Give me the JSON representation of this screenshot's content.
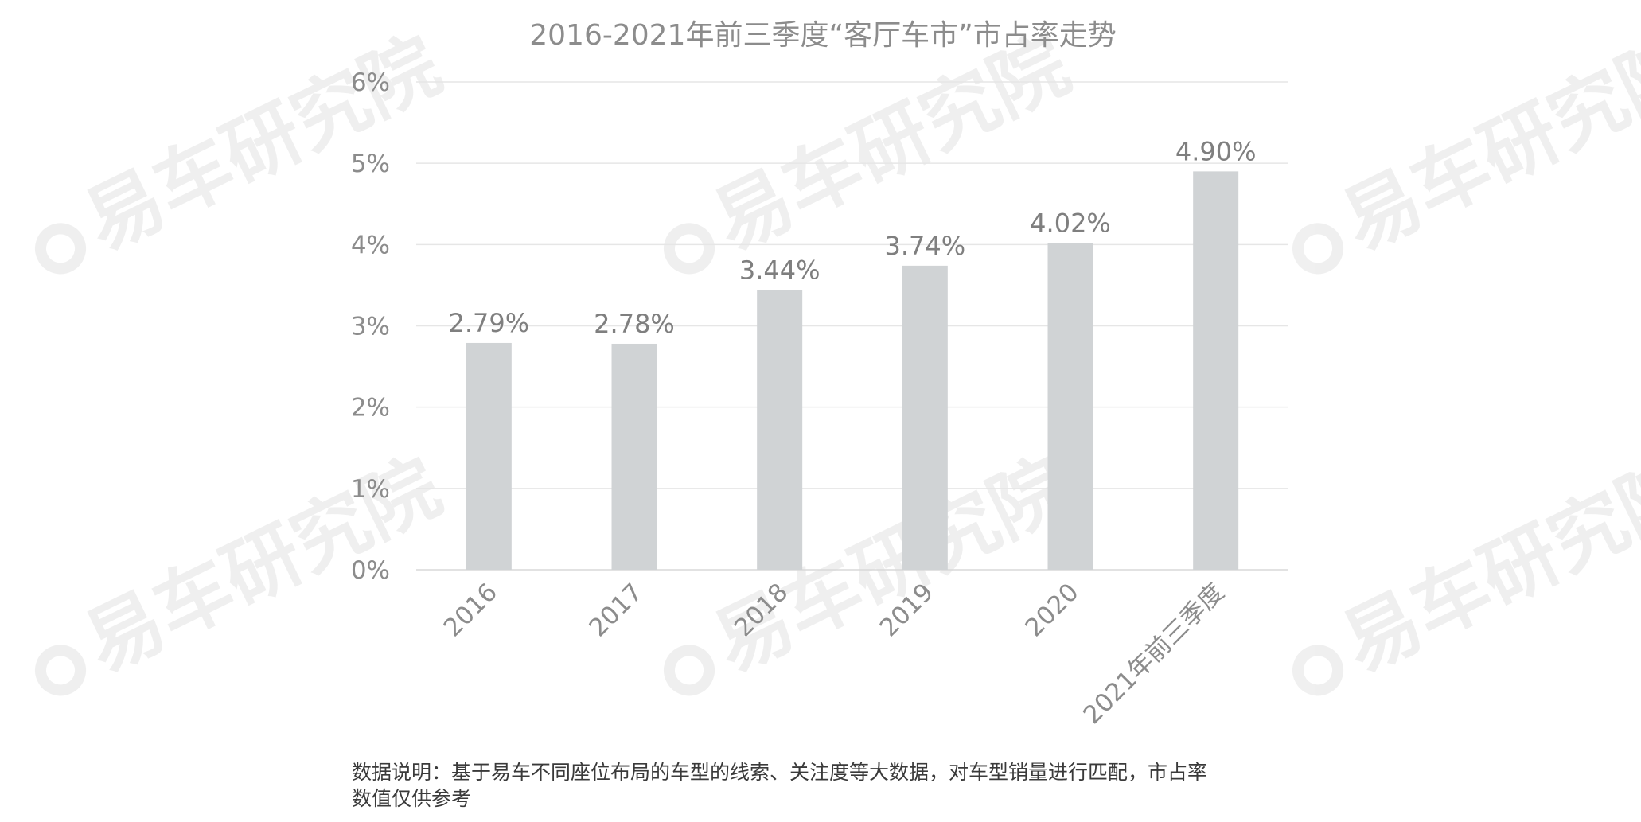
{
  "watermark_text": "易车研究院",
  "chart_data": {
    "type": "bar",
    "title": "2016-2021年前三季度“客厅车市”市占率走势",
    "categories": [
      "2016",
      "2017",
      "2018",
      "2019",
      "2020",
      "2021年前三季度"
    ],
    "values": [
      2.79,
      2.78,
      3.44,
      3.74,
      4.02,
      4.9
    ],
    "value_labels": [
      "2.79%",
      "2.78%",
      "3.44%",
      "3.74%",
      "4.02%",
      "4.90%"
    ],
    "ylim": [
      0,
      6
    ],
    "yticks": [
      "0%",
      "1%",
      "2%",
      "3%",
      "4%",
      "5%",
      "6%"
    ],
    "grid": true,
    "bar_color": "#d0d3d5",
    "grid_color": "#e6e6e6",
    "text_color": "#8c8c8c"
  },
  "note": "数据说明：基于易车不同座位布局的车型的线索、关注度等大数据，对车型销量进行匹配，市占率\n数值仅供参考"
}
